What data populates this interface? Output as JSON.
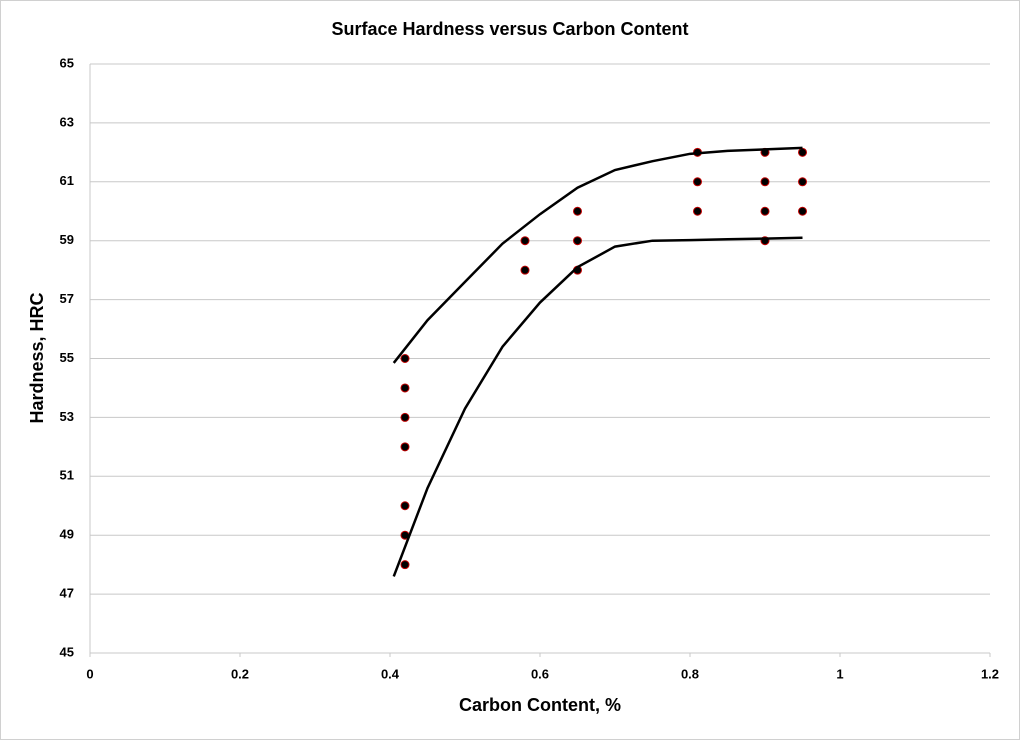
{
  "chart_data": {
    "type": "scatter",
    "title": "Surface Hardness versus Carbon Content",
    "x_label": "Carbon Content, %",
    "y_label": "Hardness, HRC",
    "xlim": [
      0,
      1.2
    ],
    "xticks": [
      0,
      0.2,
      0.4,
      0.6,
      0.8,
      1,
      1.2
    ],
    "ylim": [
      45,
      65
    ],
    "yticks": [
      45,
      47,
      49,
      51,
      53,
      55,
      57,
      59,
      61,
      63,
      65
    ],
    "grid": true,
    "series": [
      {
        "mode": "markers",
        "color": "#000000",
        "edge_color": "#c00000",
        "x": [
          0.42,
          0.42,
          0.42,
          0.42,
          0.42,
          0.42,
          0.42,
          0.58,
          0.58,
          0.65,
          0.65,
          0.65,
          0.81,
          0.81,
          0.81,
          0.9,
          0.9,
          0.9,
          0.9,
          0.95,
          0.95,
          0.95
        ],
        "values": [
          55,
          54,
          53,
          52,
          50,
          49,
          48,
          59,
          58,
          60,
          59,
          58,
          62,
          61,
          60,
          62,
          61,
          60,
          59,
          62,
          61,
          60
        ]
      },
      {
        "mode": "lines",
        "color": "#000000",
        "x": [
          0.405,
          0.45,
          0.5,
          0.55,
          0.6,
          0.65,
          0.7,
          0.75,
          0.8,
          0.85,
          0.9,
          0.95
        ],
        "values": [
          54.85,
          56.3,
          57.6,
          58.9,
          59.9,
          60.8,
          61.4,
          61.7,
          61.95,
          62.05,
          62.1,
          62.15
        ]
      },
      {
        "mode": "lines",
        "color": "#000000",
        "x": [
          0.405,
          0.45,
          0.5,
          0.55,
          0.6,
          0.65,
          0.7,
          0.75,
          0.8,
          0.85,
          0.9,
          0.95
        ],
        "values": [
          47.6,
          50.6,
          53.3,
          55.4,
          56.9,
          58.1,
          58.8,
          59.0,
          59.02,
          59.05,
          59.07,
          59.1
        ]
      }
    ]
  }
}
